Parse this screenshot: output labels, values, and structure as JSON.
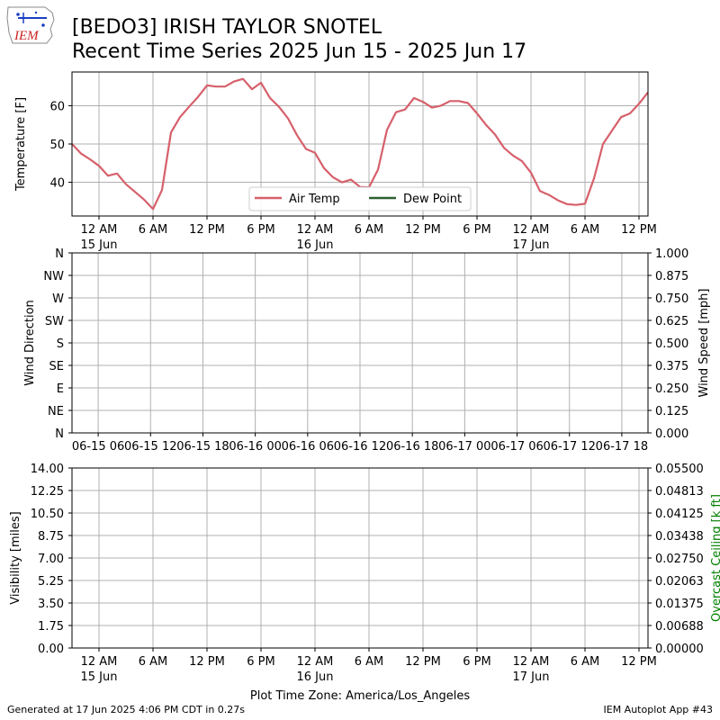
{
  "header": {
    "title_line1": "[BEDO3] IRISH TAYLOR SNOTEL",
    "title_line2": "Recent Time Series 2025 Jun 15 - 2025 Jun 17",
    "logo_text": "IEM"
  },
  "footer": {
    "generated": "Generated at 17 Jun 2025 4:06 PM CDT in 0.27s",
    "app": "IEM Autoplot App #43"
  },
  "colors": {
    "air_temp": "#d6606b",
    "dew_point": "#2e5f30",
    "ceiling_label": "#008000",
    "grid": "#b0b0b0"
  },
  "chart_data": [
    {
      "type": "line",
      "ylabel": "Temperature [F]",
      "ylim": [
        31.2,
        68.8
      ],
      "yticks": [
        40,
        50,
        60
      ],
      "x_unit": "hours since 2025-06-14 21:00 America/Los_Angeles",
      "xlim": [
        0,
        64
      ],
      "xticks": [
        {
          "x": 3,
          "line1": "12 AM",
          "line2": "15 Jun"
        },
        {
          "x": 9,
          "line1": "6 AM",
          "line2": ""
        },
        {
          "x": 15,
          "line1": "12 PM",
          "line2": ""
        },
        {
          "x": 21,
          "line1": "6 PM",
          "line2": ""
        },
        {
          "x": 27,
          "line1": "12 AM",
          "line2": "16 Jun"
        },
        {
          "x": 33,
          "line1": "6 AM",
          "line2": ""
        },
        {
          "x": 39,
          "line1": "12 PM",
          "line2": ""
        },
        {
          "x": 45,
          "line1": "6 PM",
          "line2": ""
        },
        {
          "x": 51,
          "line1": "12 AM",
          "line2": "17 Jun"
        },
        {
          "x": 57,
          "line1": "6 AM",
          "line2": ""
        },
        {
          "x": 63,
          "line1": "12 PM",
          "line2": ""
        }
      ],
      "legend": {
        "placement": "lower-center",
        "entries": [
          "Air Temp",
          "Dew Point"
        ]
      },
      "grid": true,
      "series": [
        {
          "name": "Air Temp",
          "values": [
            [
              0,
              50
            ],
            [
              1,
              47.5
            ],
            [
              2,
              46
            ],
            [
              3,
              44.3
            ],
            [
              4,
              41.7
            ],
            [
              5,
              42.3
            ],
            [
              6,
              39.5
            ],
            [
              7,
              37.5
            ],
            [
              8,
              35.5
            ],
            [
              9,
              33
            ],
            [
              10,
              38
            ],
            [
              11,
              53
            ],
            [
              12,
              57
            ],
            [
              13,
              59.7
            ],
            [
              14,
              62.3
            ],
            [
              15,
              65.3
            ],
            [
              16,
              65
            ],
            [
              17,
              65
            ],
            [
              18,
              66.3
            ],
            [
              19,
              67
            ],
            [
              20,
              64.3
            ],
            [
              21,
              66
            ],
            [
              22,
              62
            ],
            [
              23,
              59.7
            ],
            [
              24,
              56.7
            ],
            [
              25,
              52.3
            ],
            [
              26,
              48.7
            ],
            [
              27,
              47.7
            ],
            [
              28,
              43.7
            ],
            [
              29,
              41.3
            ],
            [
              30,
              40
            ],
            [
              31,
              40.7
            ],
            [
              32,
              38.8
            ],
            [
              33,
              38.7
            ],
            [
              34,
              43.3
            ],
            [
              35,
              53.7
            ],
            [
              36,
              58.3
            ],
            [
              37,
              59
            ],
            [
              38,
              62
            ],
            [
              39,
              61
            ],
            [
              40,
              59.5
            ],
            [
              41,
              60
            ],
            [
              42,
              61.2
            ],
            [
              43,
              61.2
            ],
            [
              44,
              60.7
            ],
            [
              45,
              58
            ],
            [
              46,
              55
            ],
            [
              47,
              52.5
            ],
            [
              48,
              49
            ],
            [
              49,
              47
            ],
            [
              50,
              45.5
            ],
            [
              51,
              42.5
            ],
            [
              52,
              37.7
            ],
            [
              53,
              36.7
            ],
            [
              54,
              35.3
            ],
            [
              55,
              34.3
            ],
            [
              56,
              34.1
            ],
            [
              57,
              34.4
            ],
            [
              58,
              41
            ],
            [
              59,
              50
            ],
            [
              60,
              53.5
            ],
            [
              61,
              57
            ],
            [
              62,
              58
            ],
            [
              63,
              60.5
            ],
            [
              64,
              63.5
            ]
          ]
        },
        {
          "name": "Dew Point",
          "values": []
        }
      ]
    },
    {
      "type": "line",
      "ylabel": "Wind Direction",
      "ylabel_right": "Wind Speed [mph]",
      "ylim": [
        0,
        360
      ],
      "yticks": [
        "N",
        "NE",
        "E",
        "SE",
        "S",
        "SW",
        "W",
        "NW",
        "N"
      ],
      "ylim_right": [
        0,
        1
      ],
      "yticks_right": [
        "0.000",
        "0.125",
        "0.250",
        "0.375",
        "0.500",
        "0.625",
        "0.750",
        "0.875",
        "1.000"
      ],
      "xticks": [
        "06-15 06",
        "06-15 12",
        "06-15 18",
        "06-16 00",
        "06-16 06",
        "06-16 12",
        "06-16 18",
        "06-17 00",
        "06-17 06",
        "06-17 12",
        "06-17 18"
      ],
      "grid": true,
      "series": []
    },
    {
      "type": "line",
      "ylabel": "Visibility [miles]",
      "ylabel_right": "Overcast Ceiling [k ft]",
      "ylim": [
        0,
        14
      ],
      "yticks": [
        "0.00",
        "1.75",
        "3.50",
        "5.25",
        "7.00",
        "8.75",
        "10.50",
        "12.25",
        "14.00"
      ],
      "ylim_right": [
        0,
        0.055
      ],
      "yticks_right": [
        "0.00000",
        "0.00688",
        "0.01375",
        "0.02063",
        "0.02750",
        "0.03438",
        "0.04125",
        "0.04813",
        "0.05500"
      ],
      "xlabel": "Plot Time Zone: America/Los_Angeles",
      "grid": true,
      "series": []
    }
  ]
}
